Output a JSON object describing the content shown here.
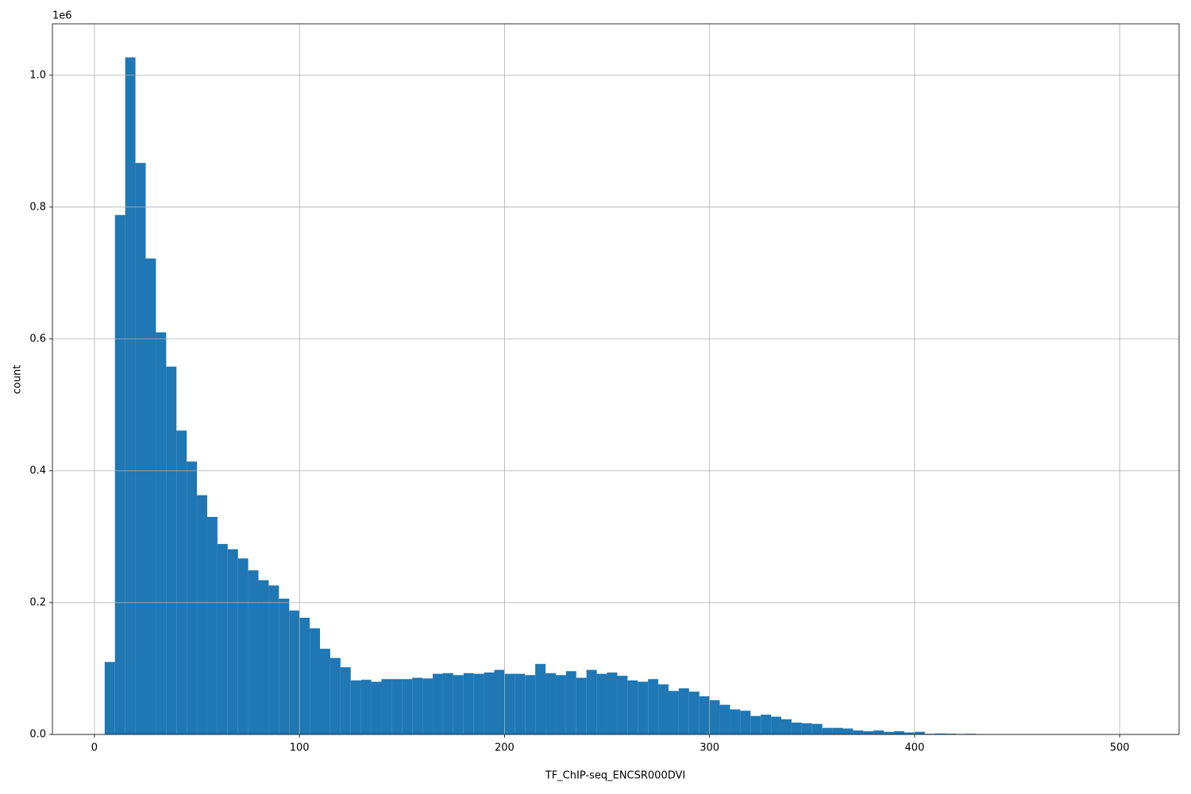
{
  "chart_data": {
    "type": "histogram",
    "xlabel": "TF_ChIP-seq_ENCSR000DVI",
    "ylabel": "count",
    "y_offset_label": "1e6",
    "color": "#1f77b4",
    "grid": true,
    "bins": [
      5,
      10,
      15,
      20,
      25,
      30,
      35,
      40,
      45,
      50,
      55,
      60,
      65,
      70,
      75,
      80,
      85,
      90,
      95,
      100,
      105,
      110,
      115,
      120,
      125,
      130,
      135,
      140,
      145,
      150,
      155,
      160,
      165,
      170,
      175,
      180,
      185,
      190,
      195,
      200,
      205,
      210,
      215,
      220,
      225,
      230,
      235,
      240,
      245,
      250,
      255,
      260,
      265,
      270,
      275,
      280,
      285,
      290,
      295,
      300,
      305,
      310,
      315,
      320,
      325,
      330,
      335,
      340,
      345,
      350,
      355,
      360,
      365,
      370,
      375,
      380,
      385,
      390,
      395,
      400,
      405,
      410,
      415,
      420,
      425,
      430,
      435,
      440,
      445,
      450,
      455,
      460,
      465,
      470,
      475,
      480,
      485,
      490,
      495,
      500,
      505
    ],
    "values": [
      110000,
      788000,
      1027000,
      867000,
      722000,
      610000,
      558000,
      461000,
      414000,
      363000,
      330000,
      289000,
      281000,
      267000,
      249000,
      234000,
      226000,
      206000,
      188000,
      177000,
      161000,
      130000,
      116000,
      102000,
      82000,
      83000,
      80000,
      84000,
      84000,
      84000,
      86000,
      85000,
      92000,
      93000,
      90000,
      93000,
      92000,
      94000,
      98000,
      92000,
      92000,
      90000,
      107000,
      93000,
      90000,
      96000,
      86000,
      98000,
      92000,
      94000,
      89000,
      82000,
      80000,
      84000,
      76000,
      66000,
      70000,
      65000,
      58000,
      52000,
      45000,
      38000,
      36000,
      28000,
      30000,
      27000,
      23000,
      18000,
      17000,
      16000,
      10000,
      10000,
      9000,
      6000,
      5000,
      6000,
      4000,
      5000,
      3000,
      4000,
      1000,
      1500,
      1200,
      800,
      1000,
      300,
      200,
      150,
      100,
      100,
      100,
      50,
      50,
      50,
      0,
      0,
      0,
      0,
      0,
      100
    ],
    "xlim": [
      -20.5,
      529
    ],
    "ylim": [
      0,
      1078000
    ],
    "xticks": [
      0,
      100,
      200,
      300,
      400,
      500
    ],
    "yticks": [
      {
        "value": 0,
        "label": "0.0"
      },
      {
        "value": 200000,
        "label": "0.2"
      },
      {
        "value": 400000,
        "label": "0.4"
      },
      {
        "value": 600000,
        "label": "0.6"
      },
      {
        "value": 800000,
        "label": "0.8"
      },
      {
        "value": 1000000,
        "label": "1.0"
      }
    ]
  }
}
